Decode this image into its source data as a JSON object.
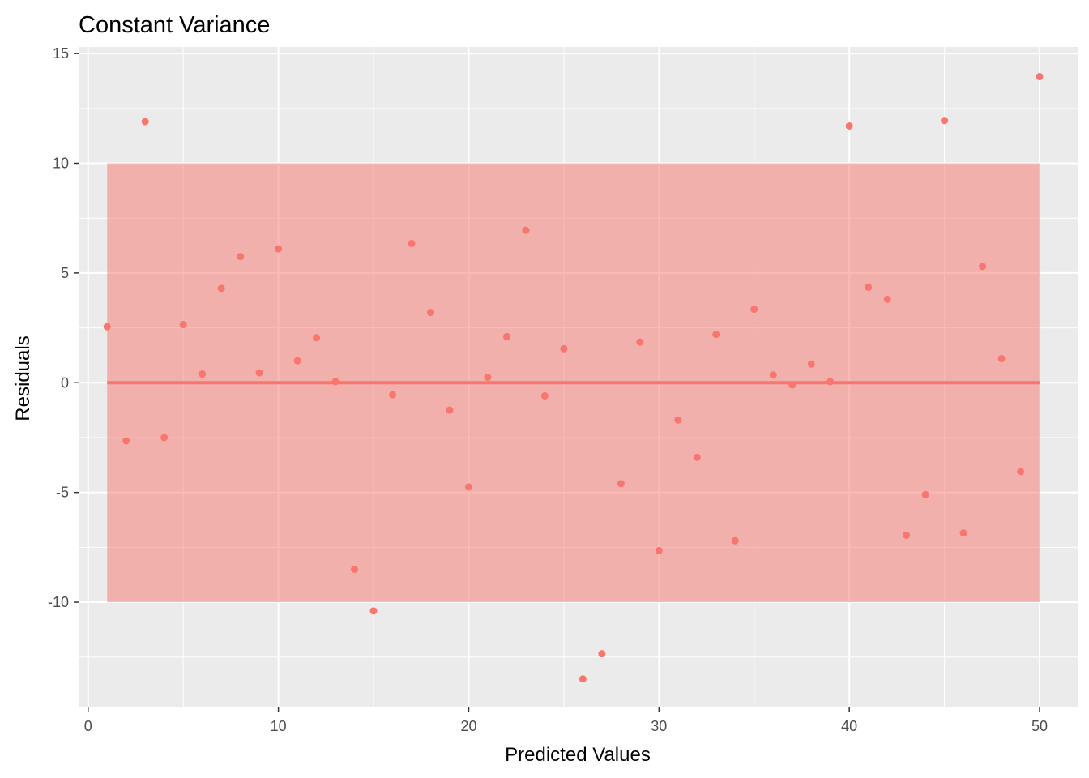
{
  "chart_data": {
    "type": "scatter",
    "title": "Constant Variance",
    "xlabel": "Predicted Values",
    "ylabel": "Residuals",
    "xlim": [
      -0.5,
      52
    ],
    "ylim": [
      -14.8,
      15.3
    ],
    "x_ticks": [
      0,
      10,
      20,
      30,
      40,
      50
    ],
    "x_tick_labels": [
      "0",
      "10",
      "20",
      "30",
      "40",
      "50"
    ],
    "y_ticks": [
      -10,
      -5,
      0,
      5,
      10,
      15
    ],
    "y_tick_labels": [
      "-10",
      "-5",
      "0",
      "5",
      "10",
      "15"
    ],
    "grid": true,
    "band": {
      "x_range": [
        1,
        50
      ],
      "y_range": [
        -10,
        10
      ],
      "color": "#f8766d",
      "opacity": 0.5
    },
    "reference_line": {
      "y": 0,
      "x_range": [
        1,
        50
      ],
      "color": "#f8766d"
    },
    "point_color": "#f8766d",
    "panel_background": "#ebebeb",
    "x": [
      1,
      2,
      3,
      4,
      5,
      6,
      7,
      8,
      9,
      10,
      11,
      12,
      13,
      14,
      15,
      16,
      17,
      18,
      19,
      20,
      21,
      22,
      23,
      24,
      25,
      26,
      27,
      28,
      29,
      30,
      31,
      32,
      33,
      34,
      35,
      36,
      37,
      38,
      39,
      40,
      41,
      42,
      43,
      44,
      45,
      46,
      47,
      48,
      49,
      50
    ],
    "y": [
      2.55,
      -2.65,
      11.9,
      -2.5,
      2.65,
      0.4,
      4.3,
      5.75,
      0.45,
      6.1,
      1.0,
      2.05,
      0.05,
      -8.5,
      -10.4,
      -0.55,
      6.35,
      3.2,
      -1.25,
      -4.75,
      0.25,
      2.1,
      6.95,
      -0.6,
      1.55,
      -13.5,
      -12.35,
      -4.6,
      1.85,
      -7.65,
      -1.7,
      -3.4,
      2.2,
      -7.2,
      3.35,
      0.35,
      -0.1,
      0.85,
      0.05,
      11.7,
      4.35,
      3.8,
      -6.95,
      -5.1,
      11.95,
      -6.85,
      5.3,
      1.1,
      -4.05,
      13.95
    ]
  }
}
